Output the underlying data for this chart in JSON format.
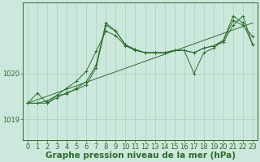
{
  "bg_color": "#cce8dc",
  "line_color": "#2d6b2d",
  "grid_color": "#aacfbf",
  "xlabel": "Graphe pression niveau de la mer (hPa)",
  "xlabel_fontsize": 7.5,
  "tick_fontsize": 6,
  "ylabel_ticks": [
    1019,
    1020
  ],
  "xlim": [
    -0.5,
    23.5
  ],
  "ylim": [
    1018.55,
    1021.55
  ],
  "series1": [
    [
      0,
      1019.35
    ],
    [
      1,
      1019.57
    ],
    [
      2,
      1019.35
    ],
    [
      3,
      1019.52
    ],
    [
      4,
      1019.68
    ],
    [
      5,
      1019.83
    ],
    [
      6,
      1020.05
    ],
    [
      7,
      1020.48
    ],
    [
      8,
      1020.92
    ],
    [
      9,
      1020.82
    ],
    [
      10,
      1020.6
    ],
    [
      11,
      1020.5
    ],
    [
      12,
      1020.45
    ],
    [
      13,
      1020.45
    ],
    [
      14,
      1020.45
    ],
    [
      15,
      1020.5
    ],
    [
      16,
      1020.5
    ],
    [
      17,
      1020.45
    ],
    [
      18,
      1020.55
    ],
    [
      19,
      1020.6
    ],
    [
      20,
      1020.72
    ],
    [
      21,
      1021.15
    ],
    [
      22,
      1021.05
    ],
    [
      23,
      1020.8
    ]
  ],
  "series2": [
    [
      0,
      1019.35
    ],
    [
      1,
      1019.35
    ],
    [
      2,
      1019.35
    ],
    [
      3,
      1019.47
    ],
    [
      4,
      1019.58
    ],
    [
      5,
      1019.65
    ],
    [
      6,
      1019.75
    ],
    [
      7,
      1020.12
    ],
    [
      8,
      1021.05
    ],
    [
      9,
      1020.92
    ],
    [
      10,
      1020.62
    ],
    [
      11,
      1020.52
    ],
    [
      12,
      1020.45
    ],
    [
      13,
      1020.45
    ],
    [
      14,
      1020.45
    ],
    [
      15,
      1020.5
    ],
    [
      16,
      1020.5
    ],
    [
      17,
      1020.0
    ],
    [
      18,
      1020.45
    ],
    [
      19,
      1020.55
    ],
    [
      20,
      1020.72
    ],
    [
      21,
      1021.25
    ],
    [
      22,
      1021.1
    ],
    [
      23,
      1020.62
    ]
  ],
  "series3": [
    [
      0,
      1019.35
    ],
    [
      1,
      1019.35
    ],
    [
      2,
      1019.4
    ],
    [
      3,
      1019.52
    ],
    [
      4,
      1019.55
    ],
    [
      5,
      1019.68
    ],
    [
      6,
      1019.82
    ],
    [
      7,
      1020.18
    ],
    [
      8,
      1021.1
    ],
    [
      9,
      1020.92
    ],
    [
      10,
      1020.62
    ],
    [
      11,
      1020.52
    ],
    [
      12,
      1020.45
    ],
    [
      13,
      1020.45
    ],
    [
      14,
      1020.45
    ],
    [
      15,
      1020.5
    ],
    [
      16,
      1020.5
    ],
    [
      17,
      1020.45
    ],
    [
      18,
      1020.55
    ],
    [
      19,
      1020.6
    ],
    [
      20,
      1020.68
    ],
    [
      21,
      1021.05
    ],
    [
      22,
      1021.25
    ],
    [
      23,
      1020.62
    ]
  ],
  "trend_line": [
    [
      0,
      1019.35
    ],
    [
      23,
      1021.1
    ]
  ]
}
